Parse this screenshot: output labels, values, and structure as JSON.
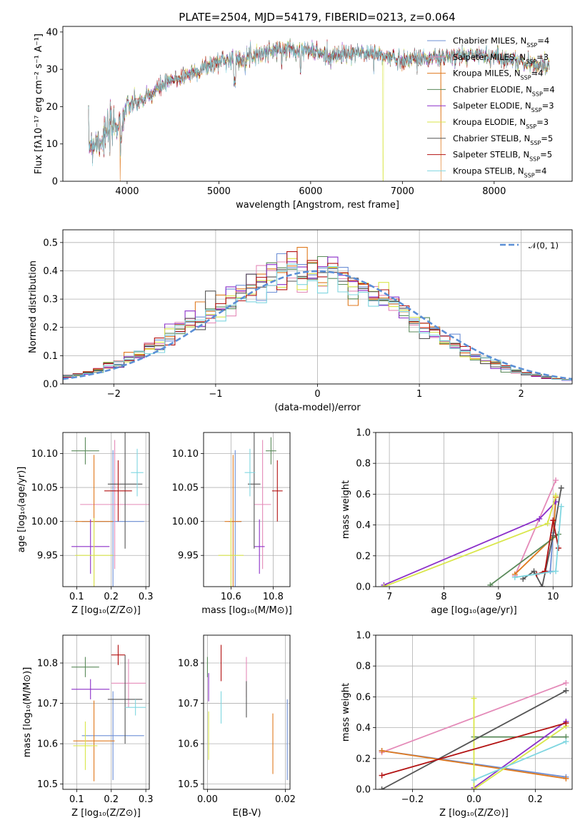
{
  "title": "PLATE=2504, MJD=54179, FIBERID=0213, z=0.064",
  "colors": {
    "chabrier_miles": "#6d8fd6",
    "salpeter_miles": "#e48ab8",
    "kroupa_miles": "#e07a1f",
    "chabrier_elodie": "#5a8a5a",
    "salpeter_elodie": "#8b2fc9",
    "kroupa_elodie": "#d9e64a",
    "chabrier_stelib": "#555555",
    "salpeter_stelib": "#b31212",
    "kroupa_stelib": "#7fd6e0",
    "normal": "#5b8fd6"
  },
  "models": [
    {
      "key": "chabrier_miles",
      "label": "Chabrier MILES, N",
      "sub": "SSP",
      "suffix": "=4"
    },
    {
      "key": "salpeter_miles",
      "label": "Salpeter MILES, N",
      "sub": "SSP",
      "suffix": "=3"
    },
    {
      "key": "kroupa_miles",
      "label": "Kroupa MILES, N",
      "sub": "SSP",
      "suffix": "=4"
    },
    {
      "key": "chabrier_elodie",
      "label": "Chabrier ELODIE, N",
      "sub": "SSP",
      "suffix": "=4"
    },
    {
      "key": "salpeter_elodie",
      "label": "Salpeter ELODIE, N",
      "sub": "SSP",
      "suffix": "=3"
    },
    {
      "key": "kroupa_elodie",
      "label": "Kroupa ELODIE, N",
      "sub": "SSP",
      "suffix": "=3"
    },
    {
      "key": "chabrier_stelib",
      "label": "Chabrier STELIB, N",
      "sub": "SSP",
      "suffix": "=5"
    },
    {
      "key": "salpeter_stelib",
      "label": "Salpeter STELIB, N",
      "sub": "SSP",
      "suffix": "=5"
    },
    {
      "key": "kroupa_stelib",
      "label": "Kroupa STELIB, N",
      "sub": "SSP",
      "suffix": "=4"
    }
  ],
  "chart_data": [
    {
      "id": "spectrum",
      "type": "line",
      "xlabel": "wavelength [Angstrom, rest frame]",
      "ylabel": "Flux [fλ10⁻¹⁷ erg cm⁻² s⁻¹ A⁻¹]",
      "xlim": [
        3300,
        8850
      ],
      "ylim": [
        0,
        41.5
      ],
      "xticks": [
        4000,
        5000,
        6000,
        7000,
        8000
      ],
      "yticks": [
        0,
        10,
        20,
        30,
        40
      ],
      "legend": "top-right",
      "continuum": {
        "x": [
          3580,
          3700,
          3800,
          3900,
          3950,
          4000,
          4100,
          4200,
          4300,
          4400,
          4500,
          4700,
          4900,
          5100,
          5200,
          5400,
          5600,
          5800,
          6000,
          6200,
          6400,
          6600,
          6800,
          7000,
          7200,
          7400,
          7600,
          7800,
          8000,
          8200,
          8400,
          8600
        ],
        "y": [
          10,
          11,
          13,
          16,
          17,
          20,
          21,
          22,
          24,
          26,
          27,
          29,
          31,
          33,
          32.5,
          34,
          35,
          35.5,
          35,
          33.5,
          34,
          34.5,
          33.5,
          32.5,
          33,
          33,
          33.5,
          34,
          33.5,
          32.5,
          31.5,
          30.5
        ]
      },
      "drops": [
        {
          "x": 3925,
          "model": "kroupa_miles"
        },
        {
          "x": 6790,
          "model": "kroupa_elodie"
        },
        {
          "x": 7420,
          "model": "kroupa_miles"
        }
      ]
    },
    {
      "id": "residuals",
      "type": "histogram",
      "xlabel": "(data-model)/error",
      "ylabel": "Normed distribution",
      "xlim": [
        -2.5,
        2.5
      ],
      "ylim": [
        0,
        0.545
      ],
      "xticks": [
        -2,
        -1,
        0,
        1,
        2
      ],
      "yticks": [
        0,
        0.1,
        0.2,
        0.3,
        0.4,
        0.5
      ],
      "grid": true,
      "legend": "top-right",
      "normal_label": "𝒩(0, 1)",
      "bin_width": 0.1
    },
    {
      "id": "age_vs_Z",
      "type": "errorbar",
      "xlabel": "Z [log₁₀(Z/Z⊙)]",
      "ylabel": "age  [log₁₀(age/yr)]",
      "xlim": [
        0.06,
        0.31
      ],
      "ylim": [
        9.904,
        10.131
      ],
      "xticks": [
        0.1,
        0.2,
        0.3
      ],
      "yticks": [
        9.95,
        10.0,
        10.05,
        10.1
      ],
      "grid": true,
      "points": [
        {
          "model": "chabrier_miles",
          "x": 0.205,
          "y": 10.0,
          "xerr": 0.09,
          "yerr": 0.105
        },
        {
          "model": "salpeter_miles",
          "x": 0.21,
          "y": 10.025,
          "xerr": 0.1,
          "yerr": 0.095
        },
        {
          "model": "kroupa_miles",
          "x": 0.15,
          "y": 10.0,
          "xerr": 0.055,
          "yerr": 0.098
        },
        {
          "model": "chabrier_elodie",
          "x": 0.125,
          "y": 10.104,
          "xerr": 0.04,
          "yerr": 0.02
        },
        {
          "model": "salpeter_elodie",
          "x": 0.14,
          "y": 9.963,
          "xerr": 0.055,
          "yerr": 0.04
        },
        {
          "model": "kroupa_elodie",
          "x": 0.15,
          "y": 9.95,
          "xerr": 0.055,
          "yerr": 0.055
        },
        {
          "model": "chabrier_stelib",
          "x": 0.24,
          "y": 10.055,
          "xerr": 0.05,
          "yerr": 0.095
        },
        {
          "model": "salpeter_stelib",
          "x": 0.22,
          "y": 10.045,
          "xerr": 0.04,
          "yerr": 0.045
        },
        {
          "model": "kroupa_stelib",
          "x": 0.275,
          "y": 10.072,
          "xerr": 0.018,
          "yerr": 0.035
        }
      ]
    },
    {
      "id": "age_vs_mass",
      "type": "errorbar",
      "xlabel": "mass [log₁₀(M/M⊙)]",
      "ylabel": "",
      "xlim": [
        10.47,
        10.88
      ],
      "ylim": [
        9.904,
        10.131
      ],
      "xticks": [
        10.6,
        10.8
      ],
      "yticks": [
        9.95,
        10.0,
        10.05,
        10.1
      ],
      "grid": true,
      "points": [
        {
          "model": "chabrier_miles",
          "x": 10.62,
          "y": 10.0,
          "xerr": 0.03,
          "yerr": 0.105
        },
        {
          "model": "salpeter_miles",
          "x": 10.75,
          "y": 10.025,
          "xerr": 0.04,
          "yerr": 0.095
        },
        {
          "model": "kroupa_miles",
          "x": 10.61,
          "y": 10.0,
          "xerr": 0.04,
          "yerr": 0.098
        },
        {
          "model": "chabrier_elodie",
          "x": 10.79,
          "y": 10.104,
          "xerr": 0.025,
          "yerr": 0.02
        },
        {
          "model": "salpeter_elodie",
          "x": 10.735,
          "y": 9.963,
          "xerr": 0.025,
          "yerr": 0.04
        },
        {
          "model": "kroupa_elodie",
          "x": 10.6,
          "y": 9.95,
          "xerr": 0.06,
          "yerr": 0.055
        },
        {
          "model": "chabrier_stelib",
          "x": 10.71,
          "y": 10.055,
          "xerr": 0.03,
          "yerr": 0.095
        },
        {
          "model": "salpeter_stelib",
          "x": 10.82,
          "y": 10.045,
          "xerr": 0.025,
          "yerr": 0.045
        },
        {
          "model": "kroupa_stelib",
          "x": 10.69,
          "y": 10.072,
          "xerr": 0.025,
          "yerr": 0.035
        }
      ]
    },
    {
      "id": "weight_vs_age",
      "type": "line",
      "xlabel": "age  [log₁₀(age/yr)]",
      "ylabel": "mass weight",
      "xlim": [
        6.75,
        10.35
      ],
      "ylim": [
        0,
        1.0
      ],
      "xticks": [
        7,
        8,
        9,
        10
      ],
      "yticks": [
        0,
        0.2,
        0.4,
        0.6,
        0.8,
        1.0
      ],
      "grid": true,
      "series": [
        {
          "model": "chabrier_miles",
          "x": [
            9.95,
            10.0,
            10.05
          ],
          "y": [
            0.1,
            0.35,
            0.55
          ]
        },
        {
          "model": "salpeter_miles",
          "x": [
            9.3,
            10.05
          ],
          "y": [
            0.07,
            0.69
          ]
        },
        {
          "model": "kroupa_miles",
          "x": [
            9.3,
            10.0,
            10.05
          ],
          "y": [
            0.08,
            0.32,
            0.58
          ]
        },
        {
          "model": "chabrier_elodie",
          "x": [
            8.85,
            10.1
          ],
          "y": [
            0.01,
            0.34
          ]
        },
        {
          "model": "salpeter_elodie",
          "x": [
            6.9,
            9.75,
            10.05
          ],
          "y": [
            0.01,
            0.44,
            0.55
          ]
        },
        {
          "model": "kroupa_elodie",
          "x": [
            6.9,
            9.9,
            10.05
          ],
          "y": [
            0.0,
            0.41,
            0.59
          ]
        },
        {
          "model": "chabrier_stelib",
          "x": [
            9.45,
            9.65,
            9.8,
            10.0,
            10.15
          ],
          "y": [
            0.05,
            0.1,
            0.0,
            0.33,
            0.64
          ]
        },
        {
          "model": "salpeter_stelib",
          "x": [
            9.7,
            9.85,
            10.0,
            10.1
          ],
          "y": [
            0.08,
            0.1,
            0.43,
            0.25
          ]
        },
        {
          "model": "kroupa_stelib",
          "x": [
            9.3,
            10.05,
            10.15
          ],
          "y": [
            0.06,
            0.1,
            0.52
          ]
        }
      ]
    },
    {
      "id": "mass_vs_Z",
      "type": "errorbar",
      "xlabel": "Z [log₁₀(Z/Z⊙)]",
      "ylabel": "mass [log₁₀(M/M⊙)]",
      "xlim": [
        0.06,
        0.31
      ],
      "ylim": [
        10.487,
        10.869
      ],
      "xticks": [
        0.1,
        0.2,
        0.3
      ],
      "yticks": [
        10.5,
        10.6,
        10.7,
        10.8
      ],
      "grid": true,
      "points": [
        {
          "model": "chabrier_miles",
          "x": 0.205,
          "y": 10.62,
          "xerr": 0.09,
          "yerr": 0.11
        },
        {
          "model": "salpeter_miles",
          "x": 0.25,
          "y": 10.75,
          "xerr": 0.05,
          "yerr": 0.06
        },
        {
          "model": "kroupa_miles",
          "x": 0.15,
          "y": 10.607,
          "xerr": 0.06,
          "yerr": 0.1
        },
        {
          "model": "chabrier_elodie",
          "x": 0.125,
          "y": 10.79,
          "xerr": 0.04,
          "yerr": 0.025
        },
        {
          "model": "salpeter_elodie",
          "x": 0.14,
          "y": 10.735,
          "xerr": 0.055,
          "yerr": 0.025
        },
        {
          "model": "kroupa_elodie",
          "x": 0.125,
          "y": 10.595,
          "xerr": 0.035,
          "yerr": 0.06
        },
        {
          "model": "chabrier_stelib",
          "x": 0.24,
          "y": 10.71,
          "xerr": 0.05,
          "yerr": 0.11
        },
        {
          "model": "salpeter_stelib",
          "x": 0.22,
          "y": 10.82,
          "xerr": 0.02,
          "yerr": 0.025
        },
        {
          "model": "kroupa_stelib",
          "x": 0.27,
          "y": 10.69,
          "xerr": 0.03,
          "yerr": 0.02
        }
      ]
    },
    {
      "id": "mass_vs_ebv",
      "type": "errorbar",
      "xlabel": "E(B-V)",
      "ylabel": "",
      "xlim": [
        -0.001,
        0.0212
      ],
      "ylim": [
        10.487,
        10.869
      ],
      "xticks": [
        0.0,
        0.02
      ],
      "yticks": [
        10.5,
        10.6,
        10.7,
        10.8
      ],
      "grid": true,
      "points": [
        {
          "model": "chabrier_miles",
          "x": 0.0205,
          "y": 10.61,
          "xerr": 0,
          "yerr": 0.1
        },
        {
          "model": "salpeter_miles",
          "x": 0.01,
          "y": 10.765,
          "xerr": 0,
          "yerr": 0.05
        },
        {
          "model": "kroupa_miles",
          "x": 0.0168,
          "y": 10.6,
          "xerr": 0,
          "yerr": 0.075
        },
        {
          "model": "chabrier_elodie",
          "x": 0.0,
          "y": 10.79,
          "xerr": 0,
          "yerr": 0.025
        },
        {
          "model": "salpeter_elodie",
          "x": 0.0003,
          "y": 10.74,
          "xerr": 0,
          "yerr": 0.035
        },
        {
          "model": "kroupa_elodie",
          "x": 0.0003,
          "y": 10.62,
          "xerr": 0,
          "yerr": 0.06
        },
        {
          "model": "chabrier_stelib",
          "x": 0.01,
          "y": 10.71,
          "xerr": 0,
          "yerr": 0.045
        },
        {
          "model": "salpeter_stelib",
          "x": 0.0035,
          "y": 10.8,
          "xerr": 0,
          "yerr": 0.045
        },
        {
          "model": "kroupa_stelib",
          "x": 0.0035,
          "y": 10.69,
          "xerr": 0,
          "yerr": 0.04
        }
      ]
    },
    {
      "id": "weight_vs_Z",
      "type": "line",
      "xlabel": "Z [log₁₀(Z/Z⊙)]",
      "ylabel": "mass weight",
      "xlim": [
        -0.32,
        0.32
      ],
      "ylim": [
        0,
        1.0
      ],
      "xticks": [
        -0.2,
        0.0,
        0.2
      ],
      "yticks": [
        0,
        0.2,
        0.4,
        0.6,
        0.8,
        1.0
      ],
      "grid": true,
      "series": [
        {
          "model": "chabrier_miles",
          "x": [
            -0.3,
            0.3
          ],
          "y": [
            0.25,
            0.08
          ]
        },
        {
          "model": "salpeter_miles",
          "x": [
            -0.3,
            0.3
          ],
          "y": [
            0.24,
            0.69
          ]
        },
        {
          "model": "kroupa_miles",
          "x": [
            -0.3,
            0.3
          ],
          "y": [
            0.25,
            0.07
          ]
        },
        {
          "model": "chabrier_elodie",
          "x": [
            0.0,
            0.3
          ],
          "y": [
            0.34,
            0.34
          ]
        },
        {
          "model": "salpeter_elodie",
          "x": [
            0.0,
            0.3
          ],
          "y": [
            0.01,
            0.44
          ]
        },
        {
          "model": "kroupa_elodie",
          "x": [
            0.0,
            0.0,
            0.3
          ],
          "y": [
            0.59,
            0.0,
            0.41
          ]
        },
        {
          "model": "chabrier_stelib",
          "x": [
            -0.3,
            0.3
          ],
          "y": [
            0.0,
            0.64
          ]
        },
        {
          "model": "salpeter_stelib",
          "x": [
            -0.3,
            0.3
          ],
          "y": [
            0.09,
            0.43
          ]
        },
        {
          "model": "kroupa_stelib",
          "x": [
            0.0,
            0.3
          ],
          "y": [
            0.06,
            0.31
          ]
        }
      ]
    }
  ]
}
